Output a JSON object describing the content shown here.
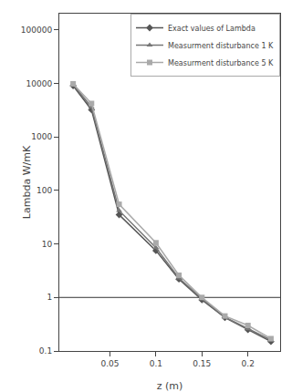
{
  "chart_data": {
    "type": "line",
    "xlabel": "z (m)",
    "ylabel": "Lambda W/mK",
    "log": "y",
    "grid": false,
    "legend": "upper right",
    "x": [
      0.01,
      0.03,
      0.06,
      0.1,
      0.125,
      0.15,
      0.175,
      0.2,
      0.225
    ],
    "series": [
      {
        "name": "Exact values of Lambda",
        "color": "#555555",
        "marker": "diamond",
        "line_style": "solid",
        "values": [
          9000,
          3200,
          35,
          7.5,
          2.2,
          0.9,
          0.42,
          0.25,
          0.15
        ]
      },
      {
        "name": "Measurment disturbance 1 K",
        "color": "#777777",
        "marker": "triangle-up",
        "line_style": "solid",
        "values": [
          9500,
          3600,
          42,
          8.5,
          2.3,
          0.95,
          0.43,
          0.26,
          0.16
        ]
      },
      {
        "name": "Measurment disturbance 5 K",
        "color": "#aaaaaa",
        "marker": "square",
        "line_style": "solid",
        "values": [
          9800,
          4200,
          55,
          10.5,
          2.6,
          1.0,
          0.45,
          0.3,
          0.17
        ]
      }
    ],
    "hline": {
      "value": 1.0,
      "color": "#333333"
    },
    "xlim": [
      -0.005,
      0.235
    ],
    "ylim": [
      0.1,
      200000
    ],
    "xticks": [
      0.05,
      0.1,
      0.15,
      0.2
    ],
    "yticks": [
      0.1,
      1,
      10,
      100,
      1000,
      10000,
      100000
    ]
  }
}
